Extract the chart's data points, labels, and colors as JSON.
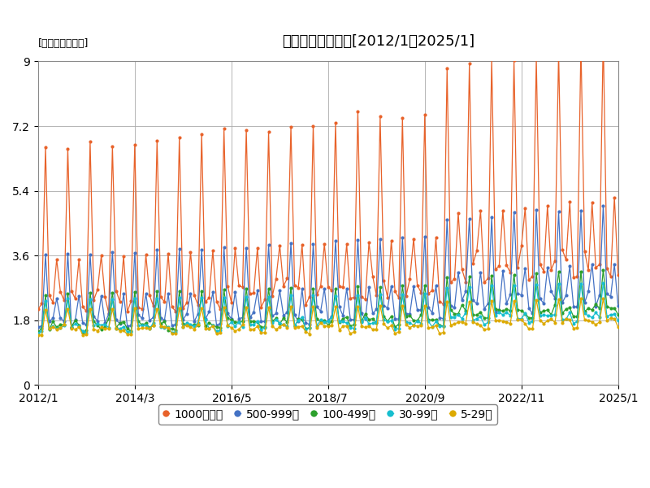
{
  "title": "企業規模別の日給[2012/1〜2025/1]",
  "unit_label": "[単位：万円／日]",
  "colors": {
    "1000人以上": "#E8622A",
    "500-999人": "#4472C4",
    "100-499人": "#2CA02C",
    "30-99人": "#17BECF",
    "5-29人": "#DDAA00"
  },
  "legend_labels": [
    "1000人以上",
    "500-999人",
    "100-499人",
    "30-99人",
    "5-29人"
  ],
  "ylim": [
    0,
    9
  ],
  "yticks": [
    0,
    1.8,
    3.6,
    5.4,
    7.2,
    9
  ],
  "start_year": 2012,
  "start_month": 1,
  "end_year": 2025,
  "end_month": 1,
  "xtick_labels": [
    "2012/1",
    "2014/3",
    "2016/5",
    "2018/7",
    "2020/9",
    "2022/11",
    "2025/1"
  ],
  "background_color": "#FFFFFF",
  "grid_color": "#AAAAAA",
  "title_fontsize": 13,
  "axis_fontsize": 10,
  "legend_fontsize": 10,
  "marker_size": 3,
  "linewidth": 0.9
}
